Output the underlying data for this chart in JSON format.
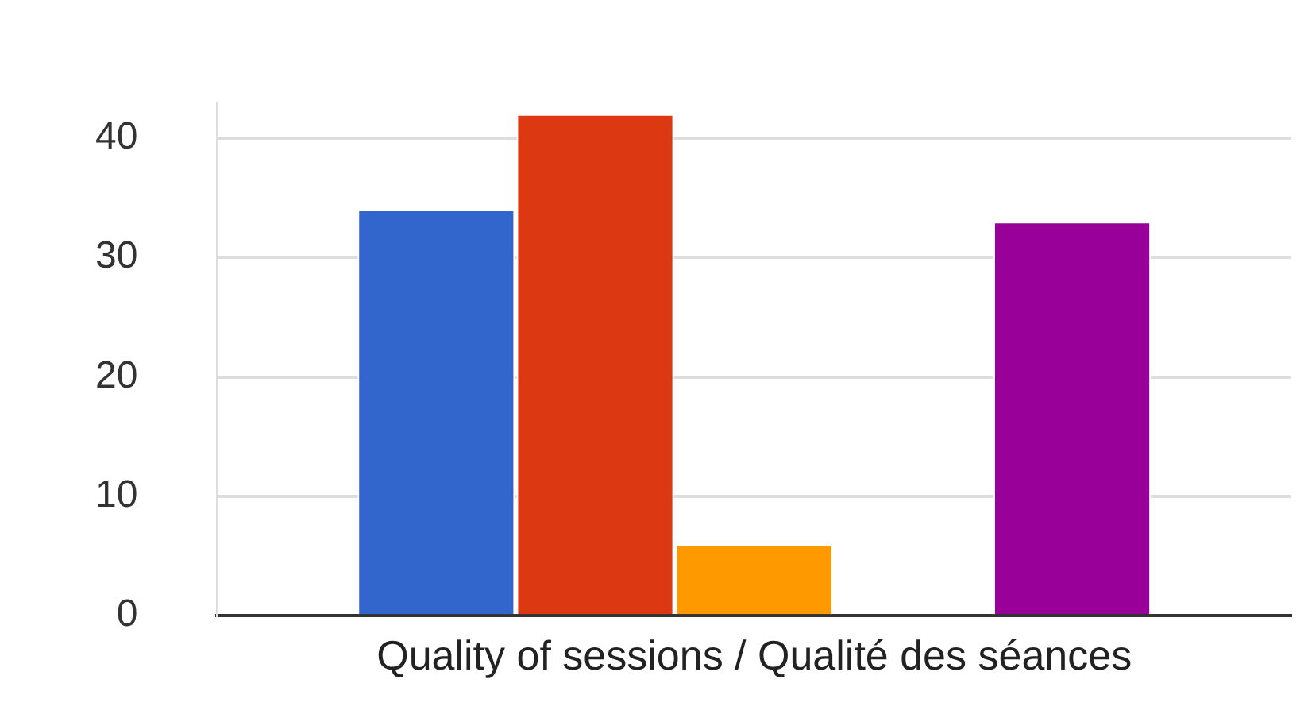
{
  "chart_data": {
    "type": "bar",
    "categories": [
      "Quality of sessions / Qualité des séances"
    ],
    "series": [
      {
        "color": "#3366cc",
        "values": [
          34
        ]
      },
      {
        "color": "#dc3912",
        "values": [
          42
        ]
      },
      {
        "color": "#ff9900",
        "values": [
          6
        ]
      },
      {
        "color": "#109618",
        "values": [
          0
        ]
      },
      {
        "color": "#990099",
        "values": [
          33
        ]
      }
    ],
    "ylim": [
      0,
      43
    ],
    "yticks": [
      0,
      10,
      20,
      30,
      40
    ],
    "grid": "y",
    "legend": false
  }
}
